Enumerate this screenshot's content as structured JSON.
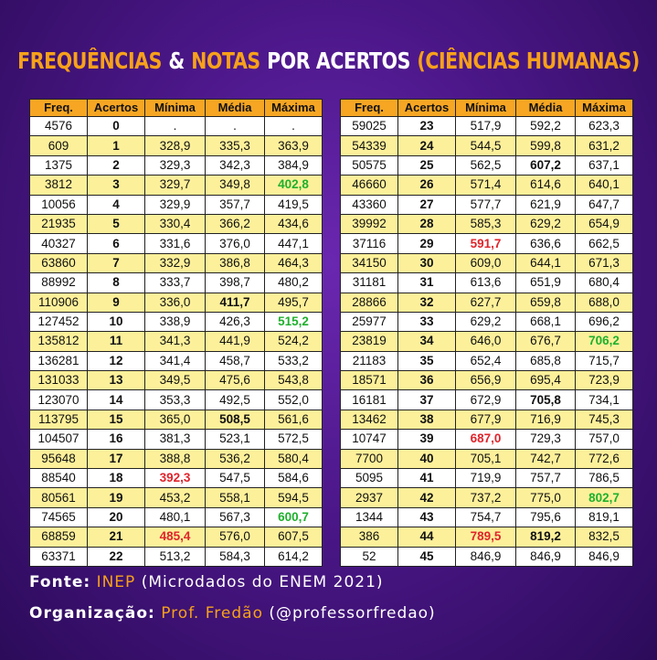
{
  "title": [
    "FREQUÊNCIAS",
    "&",
    "NOTAS",
    "POR ACERTOS",
    "(CIÊNCIAS HUMANAS)"
  ],
  "columns": [
    "Freq.",
    "Acertos",
    "Mínima",
    "Média",
    "Máxima"
  ],
  "tables": [
    {
      "rows": [
        [
          "4576",
          "0",
          ".",
          ".",
          "."
        ],
        [
          "609",
          "1",
          "328,9",
          "335,3",
          "363,9"
        ],
        [
          "1375",
          "2",
          "329,3",
          "342,3",
          "384,9"
        ],
        [
          "3812",
          "3",
          "329,7",
          "349,8",
          "402,8"
        ],
        [
          "10056",
          "4",
          "329,9",
          "357,7",
          "419,5"
        ],
        [
          "21935",
          "5",
          "330,4",
          "366,2",
          "434,6"
        ],
        [
          "40327",
          "6",
          "331,6",
          "376,0",
          "447,1"
        ],
        [
          "63860",
          "7",
          "332,9",
          "386,8",
          "464,3"
        ],
        [
          "88992",
          "8",
          "333,7",
          "398,7",
          "480,2"
        ],
        [
          "110906",
          "9",
          "336,0",
          "411,7",
          "495,7"
        ],
        [
          "127452",
          "10",
          "338,9",
          "426,3",
          "515,2"
        ],
        [
          "135812",
          "11",
          "341,3",
          "441,9",
          "524,2"
        ],
        [
          "136281",
          "12",
          "341,4",
          "458,7",
          "533,2"
        ],
        [
          "131033",
          "13",
          "349,5",
          "475,6",
          "543,8"
        ],
        [
          "123070",
          "14",
          "353,3",
          "492,5",
          "552,0"
        ],
        [
          "113795",
          "15",
          "365,0",
          "508,5",
          "561,6"
        ],
        [
          "104507",
          "16",
          "381,3",
          "523,1",
          "572,5"
        ],
        [
          "95648",
          "17",
          "388,8",
          "536,2",
          "580,4"
        ],
        [
          "88540",
          "18",
          "392,3",
          "547,5",
          "584,6"
        ],
        [
          "80561",
          "19",
          "453,2",
          "558,1",
          "594,5"
        ],
        [
          "74565",
          "20",
          "480,1",
          "567,3",
          "600,7"
        ],
        [
          "68859",
          "21",
          "485,4",
          "576,0",
          "607,5"
        ],
        [
          "63371",
          "22",
          "513,2",
          "584,3",
          "614,2"
        ]
      ]
    },
    {
      "rows": [
        [
          "59025",
          "23",
          "517,9",
          "592,2",
          "623,3"
        ],
        [
          "54339",
          "24",
          "544,5",
          "599,8",
          "631,2"
        ],
        [
          "50575",
          "25",
          "562,5",
          "607,2",
          "637,1"
        ],
        [
          "46660",
          "26",
          "571,4",
          "614,6",
          "640,1"
        ],
        [
          "43360",
          "27",
          "577,7",
          "621,9",
          "647,7"
        ],
        [
          "39992",
          "28",
          "585,3",
          "629,2",
          "654,9"
        ],
        [
          "37116",
          "29",
          "591,7",
          "636,6",
          "662,5"
        ],
        [
          "34150",
          "30",
          "609,0",
          "644,1",
          "671,3"
        ],
        [
          "31181",
          "31",
          "613,6",
          "651,9",
          "680,4"
        ],
        [
          "28866",
          "32",
          "627,7",
          "659,8",
          "688,0"
        ],
        [
          "25977",
          "33",
          "629,2",
          "668,1",
          "696,2"
        ],
        [
          "23819",
          "34",
          "646,0",
          "676,7",
          "706,2"
        ],
        [
          "21183",
          "35",
          "652,4",
          "685,8",
          "715,7"
        ],
        [
          "18571",
          "36",
          "656,9",
          "695,4",
          "723,9"
        ],
        [
          "16181",
          "37",
          "672,9",
          "705,8",
          "734,1"
        ],
        [
          "13462",
          "38",
          "677,9",
          "716,9",
          "745,3"
        ],
        [
          "10747",
          "39",
          "687,0",
          "729,3",
          "757,0"
        ],
        [
          "7700",
          "40",
          "705,1",
          "742,7",
          "772,6"
        ],
        [
          "5095",
          "41",
          "719,9",
          "757,7",
          "786,5"
        ],
        [
          "2937",
          "42",
          "737,2",
          "775,0",
          "802,7"
        ],
        [
          "1344",
          "43",
          "754,7",
          "795,6",
          "819,1"
        ],
        [
          "386",
          "44",
          "789,5",
          "819,2",
          "832,5"
        ],
        [
          "52",
          "45",
          "846,9",
          "846,9",
          "846,9"
        ]
      ]
    }
  ],
  "footer": {
    "source": {
      "label": "Fonte:",
      "value": "INEP",
      "note": "(Microdados do ENEM 2021)"
    },
    "organization": {
      "label": "Organização:",
      "value": "Prof. Fredão",
      "note": "(@professorfredao)"
    }
  }
}
